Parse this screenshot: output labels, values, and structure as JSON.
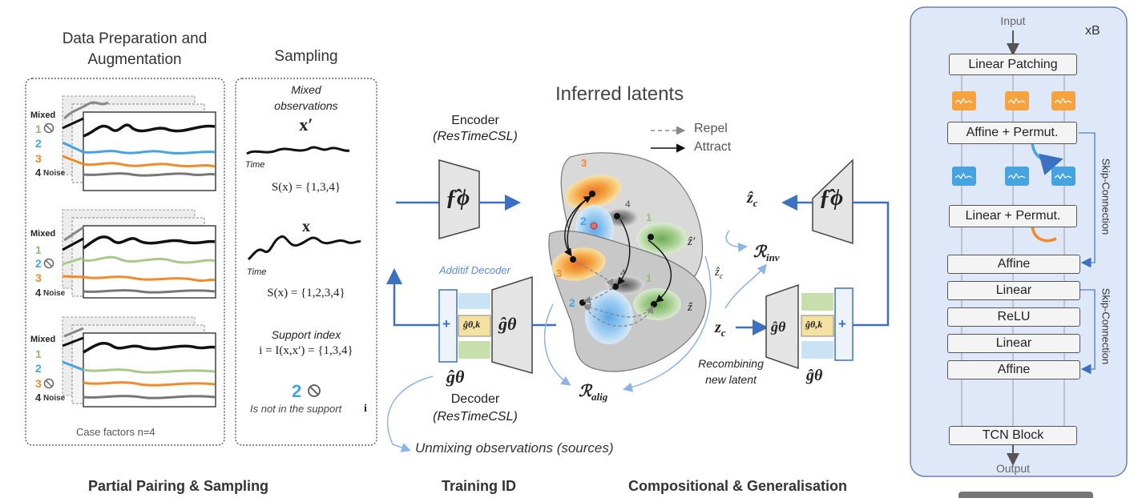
{
  "left": {
    "title_line1": "Data Preparation and",
    "title_line2": "Augmentation",
    "mixed_label": "Mixed",
    "factor_labels": [
      "1",
      "2",
      "3",
      "4"
    ],
    "noise_label": "Noise",
    "case_factors": "Case factors n=4",
    "sampling_title": "Sampling",
    "mixed_obs_line1": "Mixed",
    "mixed_obs_line2": "observations",
    "x_prime": "x′",
    "time_label": "Time",
    "support_x_prime": "S(x) = {1,3,4}",
    "x": "x",
    "support_x": "S(x) = {1,2,3,4}",
    "support_index_label": "Support index",
    "support_index_formula": "i = I(x,x′) = {1,3,4}",
    "not_in_support_number": "2",
    "not_in_support_text": "Is not in the support",
    "not_in_support_i": "i",
    "bottom_title": "Partial Pairing & Sampling"
  },
  "middle": {
    "encoder_label": "Encoder",
    "encoder_name": "(ResTimeCSL)",
    "f_phi": "ƒ̂ϕ",
    "inferred_latents": "Inferred latents",
    "repel": "Repel",
    "attract": "Attract",
    "additif_decoder": "Additif Decoder",
    "plus": "+",
    "g_theta_k": "ĝθ,k",
    "g_theta": "ĝθ",
    "decoder_label": "Decoder",
    "decoder_name": "(ResTimeCSL)",
    "r_alig": "ℛ",
    "r_alig_sub": "alig",
    "unmixing": "Unmixing observations (sources)",
    "latent_nums": [
      "3",
      "4",
      "2",
      "1",
      "3",
      "4",
      "2",
      "1"
    ],
    "z_prime": "ẑ′",
    "z_hat": "ẑ",
    "bottom_title": "Training ID"
  },
  "right_mid": {
    "z_c_hat": "ẑ",
    "z_c_sub": "c",
    "r_inv": "ℛ",
    "r_inv_sub": "inv",
    "z_c": "z",
    "recombining_line1": "Recombining",
    "recombining_line2": "new latent",
    "bottom_title": "Compositional & Generalisation"
  },
  "xb": {
    "title": "xB",
    "input": "Input",
    "output": "Output",
    "blocks": [
      "Linear Patching",
      "Affine + Permut.",
      "Linear + Permut.",
      "Affine",
      "Linear",
      "ReLU",
      "Linear",
      "Affine",
      "TCN Block"
    ],
    "skip_connection_1": "Skip-Connection",
    "skip_connection_2": "Skip-Connection"
  },
  "colors": {
    "blue": "#3c70c0",
    "light_blue": "#8cb3e8",
    "orange": "#f09a3a",
    "green": "#8fbf6e",
    "yellow": "#f2dc8a",
    "factor1": "#8fbf6e",
    "factor2": "#45a4e0",
    "factor3": "#f08a2a",
    "xb_bg": "#dfe8f8"
  }
}
